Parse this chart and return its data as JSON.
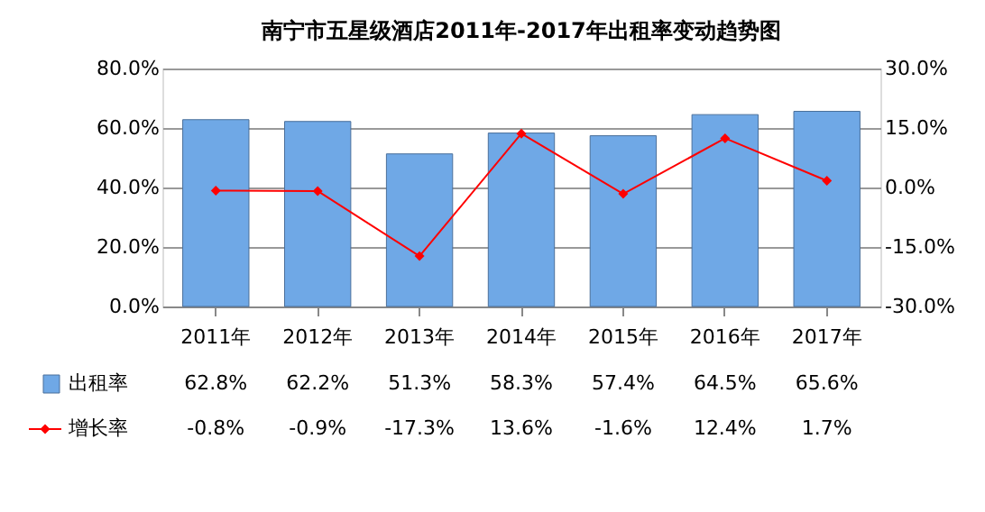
{
  "chart_data": {
    "type": "bar",
    "title": "南宁市五星级酒店2011年-2017年出租率变动趋势图",
    "categories": [
      "2011年",
      "2012年",
      "2013年",
      "2014年",
      "2015年",
      "2016年",
      "2017年"
    ],
    "series": [
      {
        "name": "出租率",
        "color": "#6fa8e6",
        "values": [
          62.8,
          62.2,
          51.3,
          58.3,
          57.4,
          64.5,
          65.6
        ],
        "value_labels": [
          "62.8%",
          "62.2%",
          "51.3%",
          "58.3%",
          "57.4%",
          "64.5%",
          "65.6%"
        ]
      },
      {
        "name": "增长率",
        "type": "line",
        "axis": "y2",
        "color": "#ff0000",
        "marker": "diamond",
        "values": [
          -0.8,
          -0.9,
          -17.3,
          13.6,
          -1.6,
          12.4,
          1.7
        ],
        "value_labels": [
          "-0.8%",
          "-0.9%",
          "-17.3%",
          "13.6%",
          "-1.6%",
          "12.4%",
          "1.7%"
        ]
      }
    ],
    "ylim": [
      0,
      80
    ],
    "yticks": [
      {
        "value": 0,
        "label": "0.0%"
      },
      {
        "value": 20,
        "label": "20.0%"
      },
      {
        "value": 40,
        "label": "40.0%"
      },
      {
        "value": 60,
        "label": "60.0%"
      },
      {
        "value": 80,
        "label": "80.0%"
      }
    ],
    "y2lim": [
      -30,
      30
    ],
    "y2ticks": [
      {
        "value": -30,
        "label": "-30.0%"
      },
      {
        "value": -15,
        "label": "-15.0%"
      },
      {
        "value": 0,
        "label": "0.0%"
      },
      {
        "value": 15,
        "label": "15.0%"
      },
      {
        "value": 30,
        "label": "30.0%"
      }
    ],
    "grid": "y",
    "legend": "bottom"
  }
}
